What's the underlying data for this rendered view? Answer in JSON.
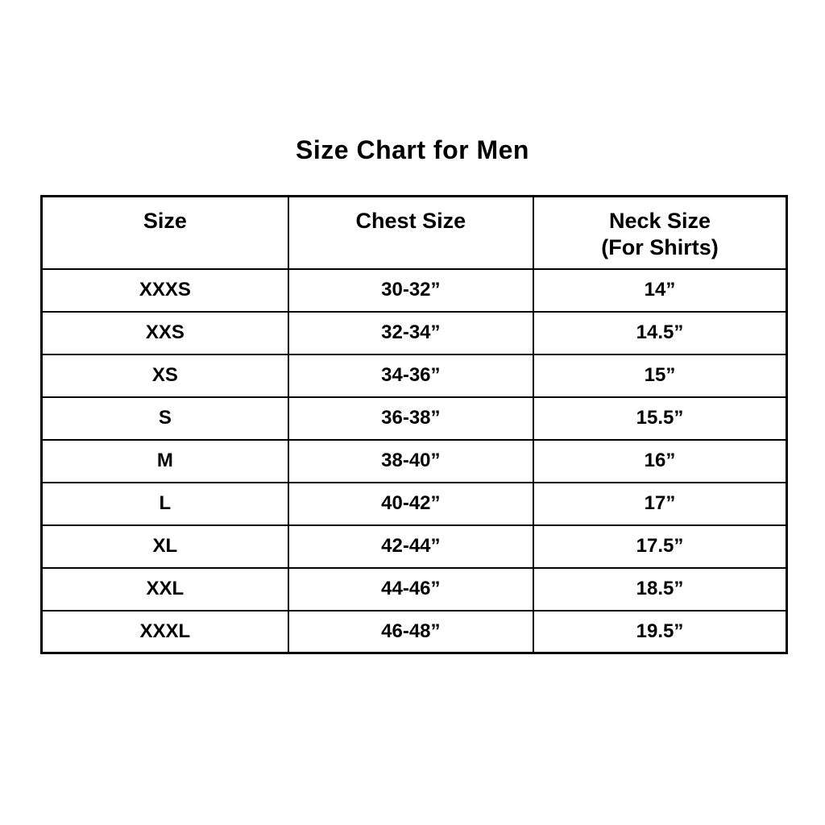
{
  "title": "Size Chart for Men",
  "colors": {
    "text": "#000000",
    "border": "#000000",
    "background": "#ffffff"
  },
  "chart_data": {
    "type": "table",
    "title": "Size Chart for Men",
    "columns": [
      "Size",
      "Chest Size",
      "Neck Size (For Shirts)"
    ],
    "header_lines": [
      [
        "Size"
      ],
      [
        "Chest Size"
      ],
      [
        "Neck Size",
        "(For Shirts)"
      ]
    ],
    "rows": [
      [
        "XXXS",
        "30-32”",
        "14”"
      ],
      [
        "XXS",
        "32-34”",
        "14.5”"
      ],
      [
        "XS",
        "34-36”",
        "15”"
      ],
      [
        "S",
        "36-38”",
        "15.5”"
      ],
      [
        "M",
        "38-40”",
        "16”"
      ],
      [
        "L",
        "40-42”",
        "17”"
      ],
      [
        "XL",
        "42-44”",
        "17.5”"
      ],
      [
        "XXL",
        "44-46”",
        "18.5”"
      ],
      [
        "XXXL",
        "46-48”",
        "19.5”"
      ]
    ]
  }
}
